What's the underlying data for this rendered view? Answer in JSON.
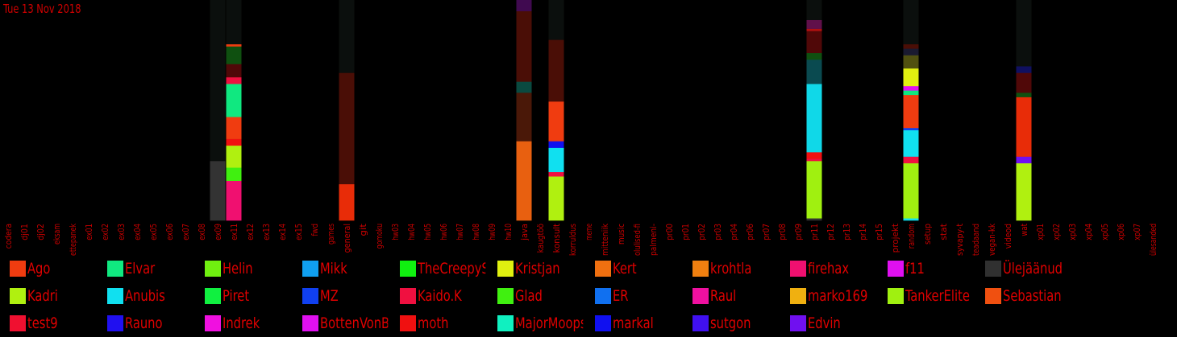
{
  "chart_data": {
    "type": "bar",
    "title": "Tue 13 Nov 2018",
    "stacked": true,
    "ylim": [
      0,
      1
    ],
    "categories": [
      "codera",
      "dj01",
      "dj02",
      "eksam",
      "ettepanek",
      "ex01",
      "ex02",
      "ex03",
      "ex04",
      "ex05",
      "ex06",
      "ex07",
      "ex08",
      "ex09",
      "ex11",
      "ex12",
      "ex13",
      "ex14",
      "ex15",
      "fwd",
      "games",
      "general",
      "git",
      "gomoku",
      "hw03",
      "hw04",
      "hw05",
      "hw06",
      "hw07",
      "hw08",
      "hw09",
      "hw10",
      "java",
      "kaugtöö",
      "konsult",
      "korruldus",
      "meme",
      "mitteniik",
      "music",
      "olulised-fi",
      "palmeni-",
      "pr00",
      "pr01",
      "pr02",
      "pr03",
      "pr04",
      "pr06",
      "pr07",
      "pr08",
      "pr09",
      "pr11",
      "pr12",
      "pr13",
      "pr14",
      "pr15",
      "projekt",
      "random",
      "setup",
      "stat",
      "syvapy-t",
      "teadaand",
      "vegan-kk",
      "videod",
      "wat",
      "xp01",
      "xp02",
      "xp03",
      "xp04",
      "xp05",
      "xp06",
      "xp07",
      "ülesanded"
    ],
    "legend": [
      {
        "name": "Ago",
        "color": "#f03c10"
      },
      {
        "name": "Elvar",
        "color": "#10e880"
      },
      {
        "name": "Helin",
        "color": "#70f010"
      },
      {
        "name": "Mikk",
        "color": "#10a0f0"
      },
      {
        "name": "TheCreepySh",
        "color": "#10f010"
      },
      {
        "name": "Kristjan",
        "color": "#e0f010"
      },
      {
        "name": "Kert",
        "color": "#f07010"
      },
      {
        "name": "krohtla",
        "color": "#f08010"
      },
      {
        "name": "firehax",
        "color": "#f01070"
      },
      {
        "name": "f11",
        "color": "#e010f0"
      },
      {
        "name": "Ülejäänud",
        "color": "#303030"
      },
      {
        "name": "Kadri",
        "color": "#b0f010"
      },
      {
        "name": "Anubis",
        "color": "#10e0f0"
      },
      {
        "name": "Piret",
        "color": "#10f040"
      },
      {
        "name": "MZ",
        "color": "#1040f0"
      },
      {
        "name": "Kaido.K",
        "color": "#f01040"
      },
      {
        "name": "Glad",
        "color": "#40f010"
      },
      {
        "name": "ER",
        "color": "#1070f0"
      },
      {
        "name": "Raul",
        "color": "#f010a0"
      },
      {
        "name": "marko169",
        "color": "#f0b010"
      },
      {
        "name": "TankerElite",
        "color": "#a0f010"
      },
      {
        "name": "Sebastian",
        "color": "#f05010"
      },
      {
        "name": "test9",
        "color": "#f01030"
      },
      {
        "name": "Rauno",
        "color": "#2010f0"
      },
      {
        "name": "Indrek",
        "color": "#f010e0"
      },
      {
        "name": "BottenVonBot",
        "color": "#e010f0"
      },
      {
        "name": "moth",
        "color": "#f01010"
      },
      {
        "name": "MajorMoopsy",
        "color": "#10f0c0"
      },
      {
        "name": "markal",
        "color": "#1010f0"
      },
      {
        "name": "sutgon",
        "color": "#4010f0"
      },
      {
        "name": "Edvin",
        "color": "#7010f0"
      }
    ],
    "bars": [
      {
        "category": "ex09",
        "segments": [
          {
            "value": 0.27,
            "color": "#333333"
          },
          {
            "value": 0.73,
            "color": "#0b0f0d"
          }
        ]
      },
      {
        "category": "ex11",
        "segments": [
          {
            "value": 0.18,
            "color": "#f01070"
          },
          {
            "value": 0.06,
            "color": "#40f010"
          },
          {
            "value": 0.1,
            "color": "#b0f010"
          },
          {
            "value": 0.03,
            "color": "#f01010"
          },
          {
            "value": 0.1,
            "color": "#f03c10"
          },
          {
            "value": 0.15,
            "color": "#10e880"
          },
          {
            "value": 0.03,
            "color": "#f01040"
          },
          {
            "value": 0.06,
            "color": "#500808"
          },
          {
            "value": 0.08,
            "color": "#0f5010"
          },
          {
            "value": 0.01,
            "color": "#f03c10"
          },
          {
            "value": 0.2,
            "color": "#0b0f0d"
          }
        ]
      },
      {
        "category": "general",
        "segments": [
          {
            "value": 0.165,
            "color": "#e82c08"
          },
          {
            "value": 0.505,
            "color": "#4a0e06"
          },
          {
            "value": 0.33,
            "color": "#0b0f0d"
          }
        ]
      },
      {
        "category": "java",
        "segments": [
          {
            "value": 0.36,
            "color": "#e86010"
          },
          {
            "value": 0.22,
            "color": "#4a1808"
          },
          {
            "value": 0.05,
            "color": "#0a4a40"
          },
          {
            "value": 0.32,
            "color": "#4a0e06"
          },
          {
            "value": 0.05,
            "color": "#400a50"
          }
        ]
      },
      {
        "category": "konsult",
        "segments": [
          {
            "value": 0.2,
            "color": "#b0f010"
          },
          {
            "value": 0.02,
            "color": "#f01040"
          },
          {
            "value": 0.11,
            "color": "#10e0f0"
          },
          {
            "value": 0.03,
            "color": "#1010f0"
          },
          {
            "value": 0.18,
            "color": "#f03c10"
          },
          {
            "value": 0.28,
            "color": "#4a0e06"
          },
          {
            "value": 0.18,
            "color": "#0b0f0d"
          }
        ]
      },
      {
        "category": "pr11",
        "segments": [
          {
            "value": 0.01,
            "color": "#303030"
          },
          {
            "value": 0.26,
            "color": "#a0f010"
          },
          {
            "value": 0.01,
            "color": "#f01040"
          },
          {
            "value": 0.03,
            "color": "#f01010"
          },
          {
            "value": 0.31,
            "color": "#10d8e8"
          },
          {
            "value": 0.11,
            "color": "#0a4a50"
          },
          {
            "value": 0.03,
            "color": "#0f5010"
          },
          {
            "value": 0.1,
            "color": "#500808"
          },
          {
            "value": 0.01,
            "color": "#b01010"
          },
          {
            "value": 0.04,
            "color": "#60104a"
          },
          {
            "value": 0.09,
            "color": "#0b0f0d"
          }
        ]
      },
      {
        "category": "random",
        "segments": [
          {
            "value": 0.01,
            "color": "#10e0f0"
          },
          {
            "value": 0.25,
            "color": "#a0f010"
          },
          {
            "value": 0.03,
            "color": "#f01040"
          },
          {
            "value": 0.12,
            "color": "#10e0f0"
          },
          {
            "value": 0.01,
            "color": "#1040f0"
          },
          {
            "value": 0.15,
            "color": "#f03c10"
          },
          {
            "value": 0.02,
            "color": "#10e880"
          },
          {
            "value": 0.02,
            "color": "#e010f0"
          },
          {
            "value": 0.08,
            "color": "#e0f010"
          },
          {
            "value": 0.06,
            "color": "#505010"
          },
          {
            "value": 0.03,
            "color": "#1a1a30"
          },
          {
            "value": 0.02,
            "color": "#4a0e06"
          },
          {
            "value": 0.2,
            "color": "#0b0f0d"
          }
        ]
      },
      {
        "category": "wat",
        "segments": [
          {
            "value": 0.26,
            "color": "#b0f010"
          },
          {
            "value": 0.03,
            "color": "#7010f0"
          },
          {
            "value": 0.27,
            "color": "#e82c08"
          },
          {
            "value": 0.02,
            "color": "#0f5010"
          },
          {
            "value": 0.09,
            "color": "#500808"
          },
          {
            "value": 0.03,
            "color": "#101060"
          },
          {
            "value": 0.3,
            "color": "#0b0f0d"
          }
        ]
      }
    ]
  }
}
